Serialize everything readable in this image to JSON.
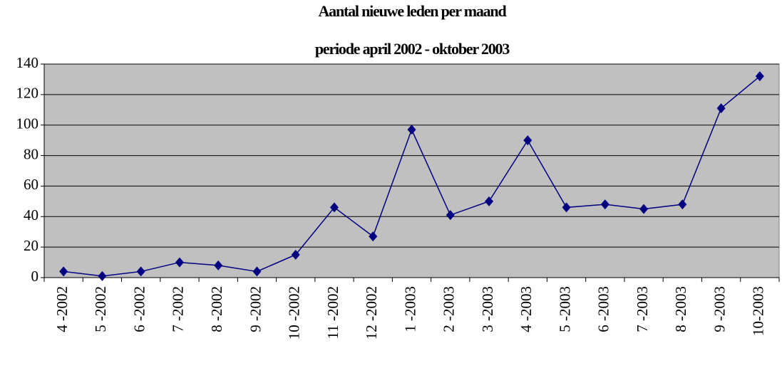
{
  "chart_data": {
    "type": "line",
    "title": "Aantal nieuwe leden per maand",
    "subtitle": "periode april 2002 - oktober 2003",
    "categories": [
      "4 -2002",
      "5 -2002",
      "6 -2002",
      "7 -2002",
      "8 -2002",
      "9 -2002",
      "10 -2002",
      "11 -2002",
      "12 -2002",
      "1 -2003",
      "2 -2003",
      "3 -2003",
      "4 -2003",
      "5 -2003",
      "6 -2003",
      "7 -2003",
      "8 -2003",
      "9 -2003",
      "10-2003"
    ],
    "series": [
      {
        "color": "#000080",
        "values": [
          4,
          1,
          4,
          10,
          8,
          4,
          15,
          46,
          27,
          97,
          41,
          50,
          90,
          46,
          48,
          45,
          48,
          111,
          132
        ]
      }
    ],
    "ylim": [
      0,
      140
    ],
    "yticks": [
      0,
      20,
      40,
      60,
      80,
      100,
      120,
      140
    ],
    "grid": true
  }
}
